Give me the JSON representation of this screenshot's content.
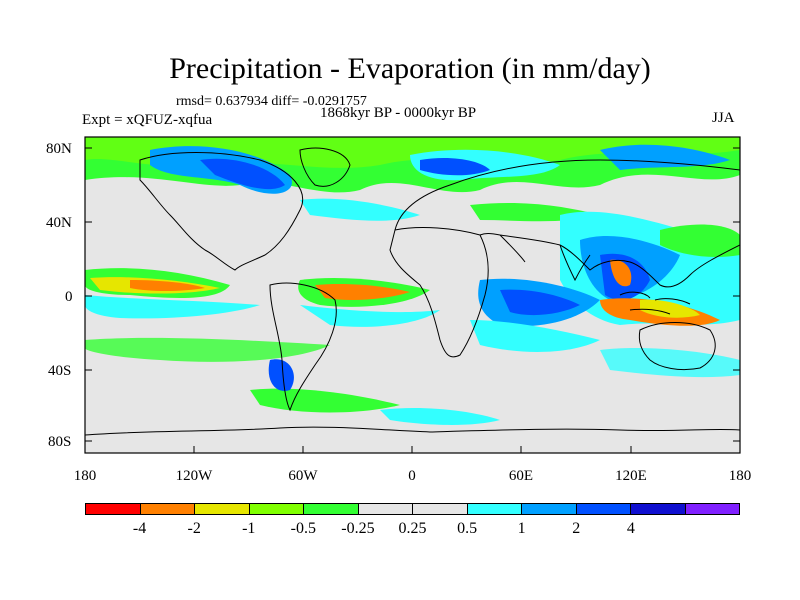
{
  "title": "Precipitation - Evaporation (in mm/day)",
  "stats": "rmsd= 0.637934 diff= -0.0291757",
  "period": "1868kyr BP - 0000kyr BP",
  "experiment": "Expt = xQFUZ-xqfua",
  "season": "JJA",
  "lat_ticks": [
    "80N",
    "40N",
    "0",
    "40S",
    "80S"
  ],
  "lon_ticks": [
    "180",
    "120W",
    "60W",
    "0",
    "60E",
    "120E",
    "180"
  ],
  "colorbar": {
    "colors": [
      "#ff0000",
      "#ff8000",
      "#e6e600",
      "#80ff00",
      "#33ff33",
      "#e6e6e6",
      "#e6e6e6",
      "#33ffff",
      "#00a0ff",
      "#0050ff",
      "#1010d0",
      "#8020ff"
    ],
    "labels": [
      "-4",
      "-2",
      "-1",
      "-0.5",
      "-0.25",
      "0.25",
      "0.5",
      "1",
      "2",
      "4"
    ]
  }
}
